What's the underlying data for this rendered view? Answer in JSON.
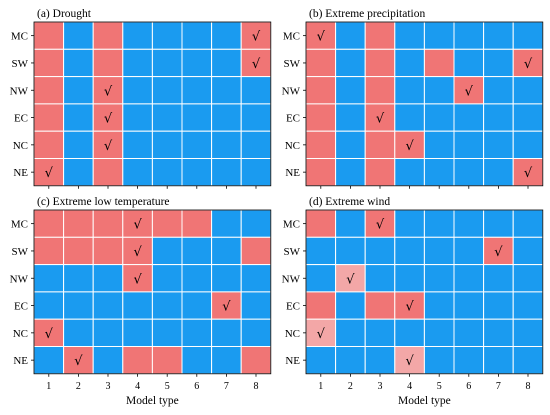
{
  "colors": {
    "blue": "#1a9bf0",
    "red": "#f07575",
    "pink": "#f3a7a7",
    "grid": "#ffffff"
  },
  "legend_note": "",
  "chart_data": [
    {
      "type": "heatmap",
      "title": "(a) Drought",
      "xlabel": "",
      "x": [
        "1",
        "2",
        "3",
        "4",
        "5",
        "6",
        "7",
        "8"
      ],
      "y": [
        "MC",
        "SW",
        "NW",
        "EC",
        "NC",
        "NE"
      ],
      "values": [
        [
          1,
          0,
          1,
          0,
          0,
          0,
          0,
          1
        ],
        [
          1,
          0,
          1,
          0,
          0,
          0,
          0,
          1
        ],
        [
          1,
          0,
          1,
          0,
          0,
          0,
          0,
          0
        ],
        [
          1,
          0,
          1,
          0,
          0,
          0,
          0,
          0
        ],
        [
          1,
          0,
          1,
          0,
          0,
          0,
          0,
          0
        ],
        [
          1,
          0,
          1,
          0,
          0,
          0,
          0,
          0
        ]
      ],
      "checks": [
        [
          0,
          7
        ],
        [
          1,
          7
        ],
        [
          2,
          2
        ],
        [
          3,
          2
        ],
        [
          4,
          2
        ],
        [
          5,
          0
        ]
      ],
      "check_symbol": "√"
    },
    {
      "type": "heatmap",
      "title": "(b) Extreme precipitation",
      "xlabel": "",
      "x": [
        "1",
        "2",
        "3",
        "4",
        "5",
        "6",
        "7",
        "8"
      ],
      "y": [
        "MC",
        "SW",
        "NW",
        "EC",
        "NC",
        "NE"
      ],
      "values": [
        [
          1,
          0,
          1,
          0,
          0,
          0,
          0,
          0
        ],
        [
          1,
          0,
          1,
          0,
          1,
          0,
          0,
          1
        ],
        [
          1,
          0,
          1,
          0,
          0,
          1,
          0,
          0
        ],
        [
          1,
          0,
          1,
          0,
          0,
          0,
          0,
          0
        ],
        [
          1,
          0,
          1,
          1,
          0,
          0,
          0,
          0
        ],
        [
          1,
          0,
          1,
          0,
          0,
          0,
          0,
          1
        ]
      ],
      "checks": [
        [
          0,
          0
        ],
        [
          1,
          7
        ],
        [
          2,
          5
        ],
        [
          3,
          2
        ],
        [
          4,
          3
        ],
        [
          5,
          7
        ]
      ],
      "check_symbol": "√"
    },
    {
      "type": "heatmap",
      "title": "(c) Extreme low temperature",
      "xlabel": "Model  type",
      "x": [
        "1",
        "2",
        "3",
        "4",
        "5",
        "6",
        "7",
        "8"
      ],
      "y": [
        "MC",
        "SW",
        "NW",
        "EC",
        "NC",
        "NE"
      ],
      "values": [
        [
          1,
          1,
          1,
          1,
          1,
          1,
          0,
          0
        ],
        [
          1,
          1,
          1,
          1,
          0,
          0,
          0,
          1
        ],
        [
          0,
          0,
          0,
          1,
          0,
          0,
          0,
          0
        ],
        [
          0,
          0,
          0,
          0,
          0,
          0,
          1,
          0
        ],
        [
          1,
          0,
          0,
          0,
          0,
          0,
          0,
          0
        ],
        [
          0,
          1,
          0,
          1,
          1,
          0,
          0,
          1
        ]
      ],
      "checks": [
        [
          0,
          3
        ],
        [
          1,
          3
        ],
        [
          2,
          3
        ],
        [
          3,
          6
        ],
        [
          4,
          0
        ],
        [
          5,
          1
        ]
      ],
      "check_symbol": "√"
    },
    {
      "type": "heatmap",
      "title": "(d) Extreme wind",
      "xlabel": "Model  type",
      "x": [
        "1",
        "2",
        "3",
        "4",
        "5",
        "6",
        "7",
        "8"
      ],
      "y": [
        "MC",
        "SW",
        "NW",
        "EC",
        "NC",
        "NE"
      ],
      "values": [
        [
          1,
          0,
          1,
          0,
          0,
          0,
          0,
          0
        ],
        [
          0,
          0,
          0,
          0,
          0,
          0,
          1,
          0
        ],
        [
          0,
          2,
          0,
          0,
          0,
          0,
          0,
          0
        ],
        [
          1,
          0,
          1,
          1,
          0,
          0,
          0,
          0
        ],
        [
          2,
          0,
          0,
          0,
          0,
          0,
          0,
          0
        ],
        [
          0,
          0,
          0,
          2,
          0,
          0,
          0,
          0
        ]
      ],
      "checks": [
        [
          0,
          2
        ],
        [
          1,
          6
        ],
        [
          2,
          1
        ],
        [
          3,
          3
        ],
        [
          4,
          0
        ],
        [
          5,
          3
        ]
      ],
      "check_symbol": "√"
    }
  ]
}
